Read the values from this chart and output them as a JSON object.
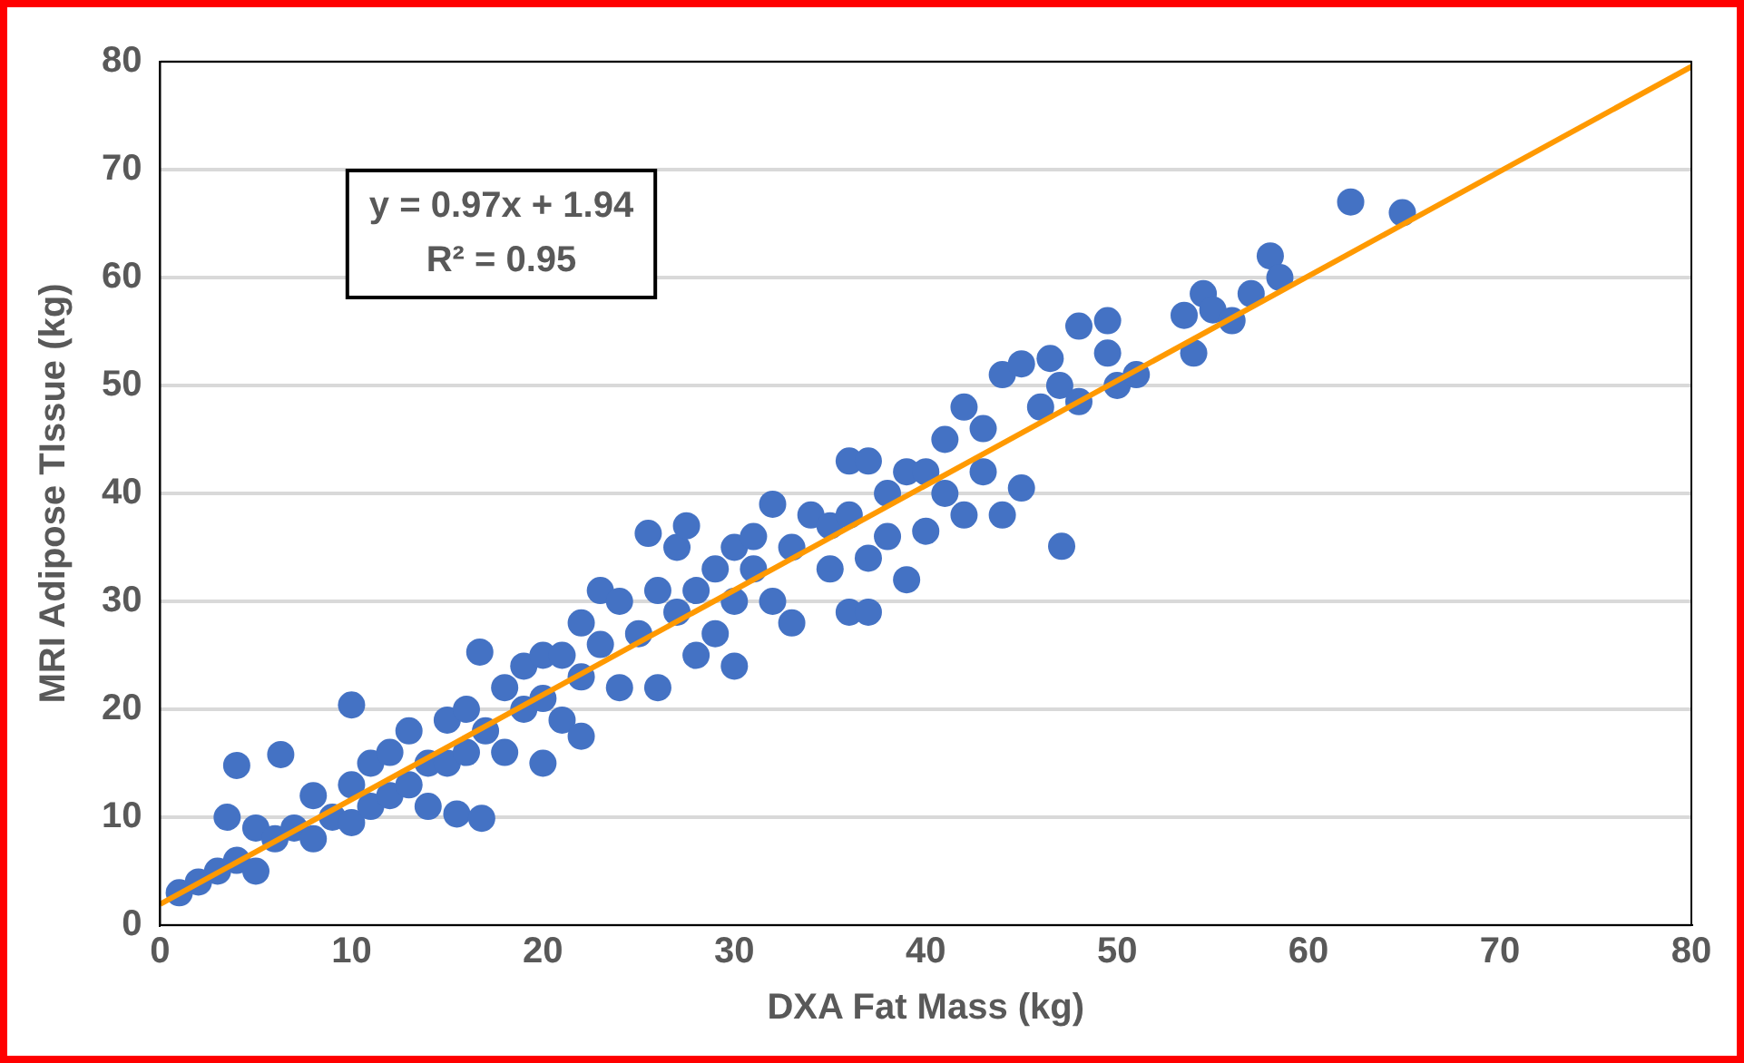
{
  "chart_data": {
    "type": "scatter",
    "xlabel": "DXA Fat Mass (kg)",
    "ylabel": "MRI Adipose TIssue (kg)",
    "xlim": [
      0,
      80
    ],
    "xticks": [
      0,
      10,
      20,
      30,
      40,
      50,
      60,
      70,
      80
    ],
    "ylim": [
      0,
      80
    ],
    "yticks": [
      0,
      10,
      20,
      30,
      40,
      50,
      60,
      70,
      80
    ],
    "grid": "y",
    "legend": false,
    "marker": "circle",
    "annotations": [
      "y = 0.97x + 1.94",
      "R² = 0.95"
    ],
    "series": [
      {
        "color": "#4472c4",
        "x": [
          1,
          2,
          3,
          3.5,
          4,
          4,
          5,
          5,
          6,
          6.3,
          7,
          8,
          8,
          9,
          10,
          10,
          10,
          11,
          11,
          12,
          12,
          13,
          13,
          14,
          14,
          15,
          15,
          15.5,
          16,
          16,
          16.7,
          16.8,
          17,
          18,
          18,
          19,
          19,
          20,
          20,
          20,
          21,
          21,
          22,
          22,
          22,
          23,
          23,
          24,
          24,
          25,
          25.5,
          26,
          26,
          27,
          27,
          27.5,
          28,
          28,
          29,
          29,
          30,
          30,
          30,
          31,
          31,
          32,
          32,
          33,
          33,
          34,
          35,
          35,
          36,
          36,
          36,
          37,
          37,
          37,
          38,
          38,
          39,
          39,
          40,
          40,
          41,
          41,
          42,
          42,
          43,
          43,
          44,
          44,
          45,
          45,
          46,
          46.5,
          47,
          47.1,
          48,
          48,
          49.5,
          49.5,
          50,
          51,
          53.5,
          54,
          54.5,
          55,
          56,
          57,
          58,
          58.5,
          62.2,
          64.9
        ],
        "values": [
          3,
          4,
          5,
          10,
          14.8,
          6,
          5,
          9,
          8,
          15.8,
          9,
          12,
          8,
          10,
          20.4,
          13,
          9.5,
          15,
          11,
          16,
          12,
          18,
          13,
          15,
          11,
          19,
          15,
          10.3,
          20,
          16,
          25.3,
          9.9,
          18,
          22,
          16,
          24,
          20,
          25,
          15,
          21,
          25,
          19,
          28,
          23,
          17.5,
          31,
          26,
          30,
          22,
          27,
          36.3,
          31,
          22,
          35,
          29,
          37,
          31,
          25,
          33,
          27,
          35,
          30,
          24,
          33,
          36,
          39,
          30,
          35,
          28,
          38,
          37,
          33,
          43,
          38,
          29,
          43,
          34,
          29,
          40,
          36,
          42,
          32,
          42,
          36.5,
          45,
          40,
          48,
          38,
          46,
          42,
          51,
          38,
          52,
          40.5,
          48,
          52.5,
          50,
          35.1,
          55.5,
          48.5,
          56,
          53,
          50,
          51,
          56.5,
          53,
          58.5,
          57,
          56,
          58.5,
          62,
          60,
          67,
          66
        ]
      },
      {
        "type": "line",
        "marker": "none",
        "color": "#ff9900",
        "x": [
          0,
          80
        ],
        "values": [
          1.94,
          79.54
        ]
      }
    ]
  }
}
